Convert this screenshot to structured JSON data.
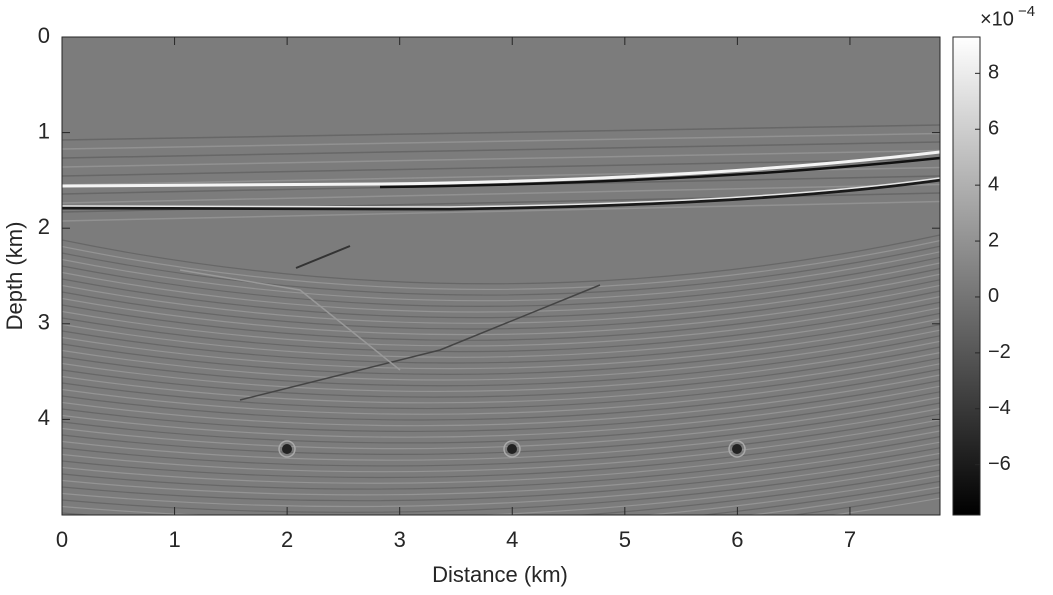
{
  "chart_data": {
    "type": "image",
    "colormap": "gray",
    "xlabel": "Distance (km)",
    "ylabel": "Depth (km)",
    "xlim": [
      0,
      7.8
    ],
    "ylim": [
      0,
      5
    ],
    "y_reversed": true,
    "xticks": [
      0,
      1,
      2,
      3,
      4,
      5,
      6,
      7
    ],
    "yticks": [
      0,
      1,
      2,
      3,
      4
    ],
    "clim": [
      -7.8,
      9.3
    ],
    "cticks": [
      {
        "value": -6,
        "label": "−6"
      },
      {
        "value": -4,
        "label": "−4"
      },
      {
        "value": -2,
        "label": "−2"
      },
      0,
      2,
      4,
      6,
      8
    ],
    "colorbar_multiplier": "×10",
    "colorbar_exponent": "−4"
  }
}
